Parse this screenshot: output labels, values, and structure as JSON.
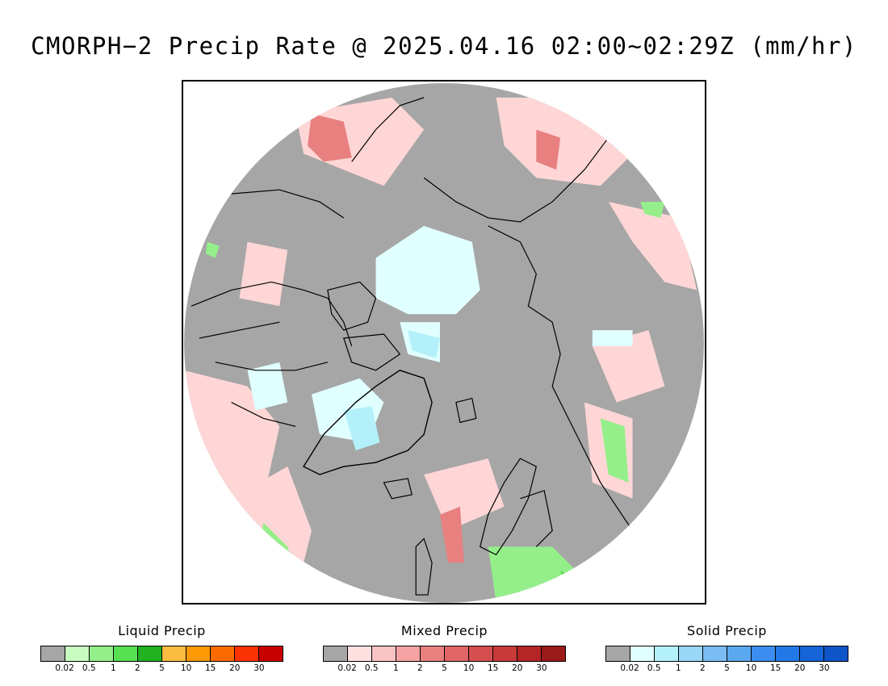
{
  "title": "CMORPH−2 Precip Rate @ 2025.04.16 02:00~02:29Z (mm/hr)",
  "colors": {
    "no_precip": "#a6a6a6",
    "ocean_frame": "#ffffff",
    "coastline": "#000000"
  },
  "legends": [
    {
      "key": "liquid",
      "title": "Liquid Precip",
      "ticks": [
        "0.02",
        "0.5",
        "1",
        "2",
        "5",
        "10",
        "15",
        "20",
        "30"
      ],
      "colors": [
        "#a6a6a6",
        "#c8fbc0",
        "#94ef8a",
        "#55e052",
        "#21b121",
        "#fbbb3f",
        "#fb9a05",
        "#fb6a00",
        "#fb3300",
        "#c80000"
      ]
    },
    {
      "key": "mixed",
      "title": "Mixed Precip",
      "ticks": [
        "0.02",
        "0.5",
        "1",
        "2",
        "5",
        "10",
        "15",
        "20",
        "30"
      ],
      "colors": [
        "#a6a6a6",
        "#ffe0e0",
        "#fbc4c4",
        "#f5a3a3",
        "#e88080",
        "#e06666",
        "#d64f4f",
        "#c83a3a",
        "#b52525",
        "#9b1a1a"
      ]
    },
    {
      "key": "solid",
      "title": "Solid Precip",
      "ticks": [
        "0.02",
        "0.5",
        "1",
        "2",
        "5",
        "10",
        "15",
        "20",
        "30"
      ],
      "colors": [
        "#a6a6a6",
        "#e0ffff",
        "#b3f0fa",
        "#99d6f8",
        "#7abdf5",
        "#5aa8f0",
        "#3b8ef0",
        "#2378e8",
        "#1565d8",
        "#0d55c8"
      ]
    }
  ]
}
